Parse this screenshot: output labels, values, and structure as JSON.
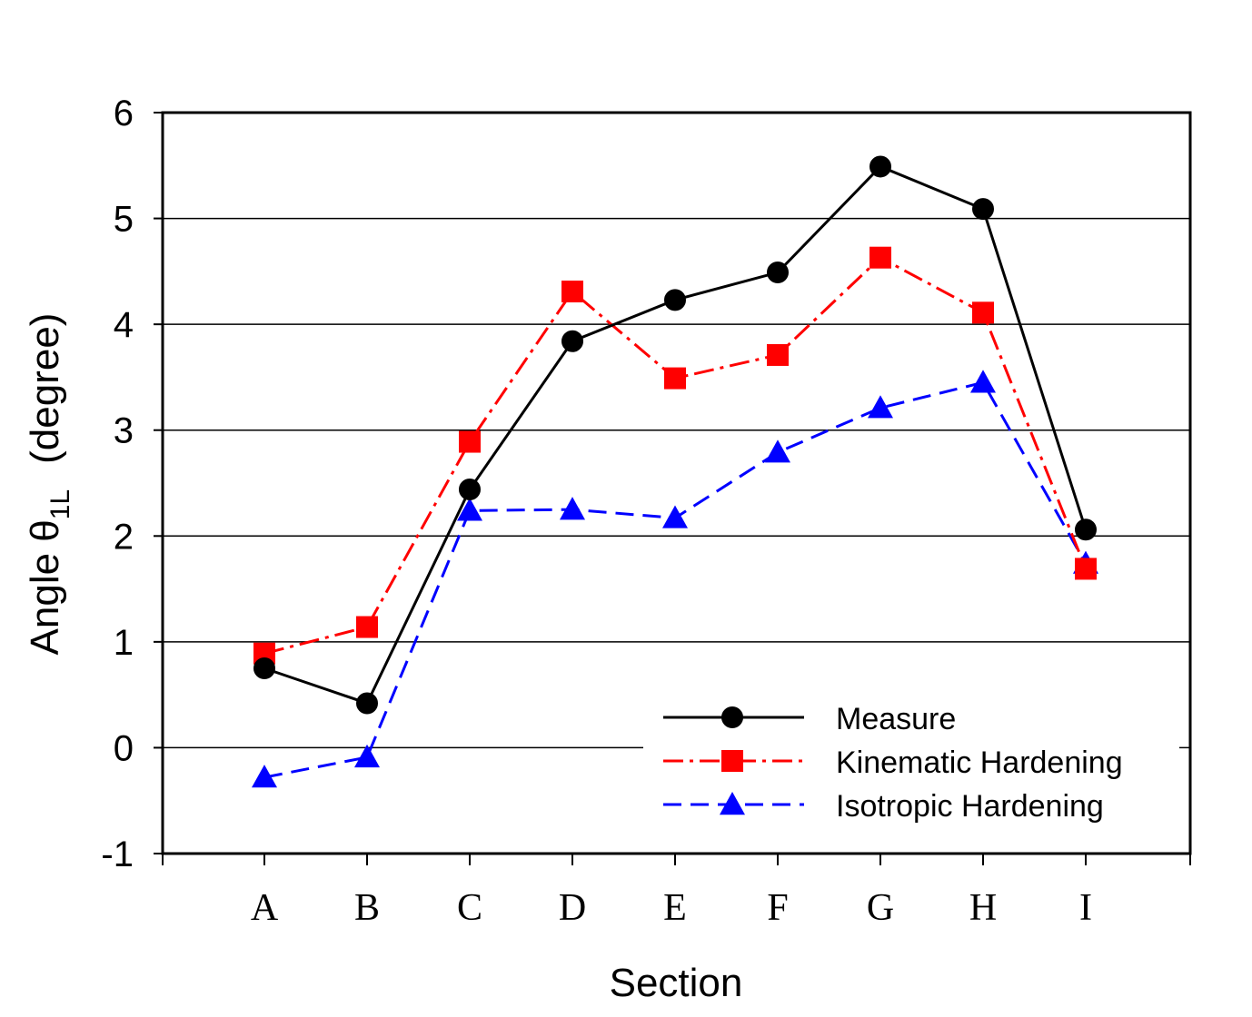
{
  "chart_data": {
    "type": "line",
    "title": "",
    "xlabel": "Section",
    "ylabel": {
      "prefix": "Angle θ",
      "subscript": "1L",
      "suffix": "(degree)"
    },
    "categories": [
      "A",
      "B",
      "C",
      "D",
      "E",
      "F",
      "G",
      "H",
      "I"
    ],
    "ylim": [
      -1,
      6
    ],
    "yticks": [
      -1,
      0,
      1,
      2,
      3,
      4,
      5,
      6
    ],
    "grid": true,
    "legend_position": "bottom-right",
    "series": [
      {
        "name": "Measure",
        "color": "#000000",
        "marker": "circle",
        "line_style": "solid",
        "values": [
          0.75,
          0.42,
          2.44,
          3.84,
          4.23,
          4.49,
          5.49,
          5.09,
          2.06
        ]
      },
      {
        "name": "Kinematic Hardening",
        "color": "#ff0000",
        "marker": "square",
        "line_style": "dashdot",
        "values": [
          0.89,
          1.14,
          2.89,
          4.31,
          3.49,
          3.71,
          4.63,
          4.11,
          1.69
        ]
      },
      {
        "name": "Isotropic Hardening",
        "color": "#0000ff",
        "marker": "triangle",
        "line_style": "dashed",
        "values": [
          -0.28,
          -0.09,
          2.24,
          2.25,
          2.17,
          2.79,
          3.21,
          3.45,
          1.74
        ]
      }
    ]
  }
}
